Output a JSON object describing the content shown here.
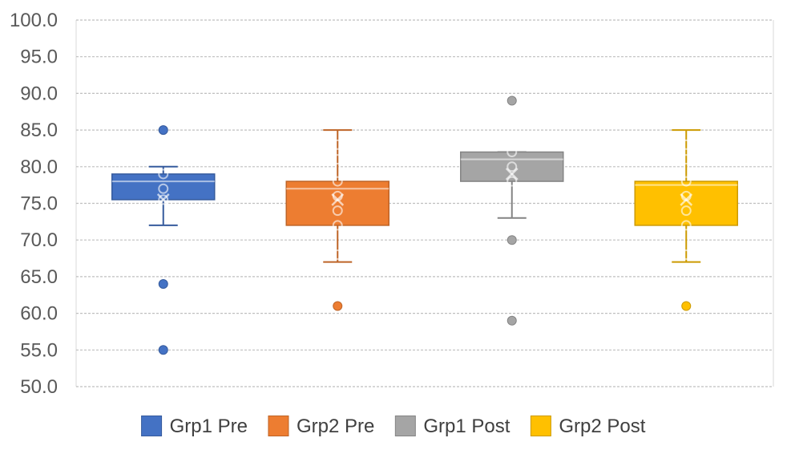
{
  "chart_data": {
    "type": "box",
    "title": "",
    "xlabel": "",
    "ylabel": "",
    "ylim": [
      50,
      100
    ],
    "y_ticks": [
      "50.0",
      "55.0",
      "60.0",
      "65.0",
      "70.0",
      "75.0",
      "80.0",
      "85.0",
      "90.0",
      "95.0",
      "100.0"
    ],
    "grid": true,
    "legend_position": "bottom",
    "series": [
      {
        "name": "Grp1 Pre",
        "color": "#4472C4",
        "whisker_low": 72,
        "q1": 75.5,
        "median": 78,
        "q3": 79,
        "whisker_high": 80,
        "mean": 75.5,
        "points": [
          79,
          77,
          75.5
        ],
        "outliers": [
          85,
          64,
          55
        ]
      },
      {
        "name": "Grp2 Pre",
        "color": "#ED7D31",
        "whisker_low": 67,
        "q1": 72,
        "median": 77,
        "q3": 78,
        "whisker_high": 85,
        "mean": 75.5,
        "points": [
          83,
          81,
          78,
          76,
          74,
          72,
          68
        ],
        "outliers": [
          61
        ]
      },
      {
        "name": "Grp1 Post",
        "color": "#A5A5A5",
        "whisker_low": 73,
        "q1": 78,
        "median": 81,
        "q3": 82,
        "whisker_high": 82,
        "mean": 79,
        "points": [
          82,
          80,
          78
        ],
        "outliers": [
          89,
          70,
          59
        ]
      },
      {
        "name": "Grp2 Post",
        "color": "#FFC000",
        "whisker_low": 67,
        "q1": 72,
        "median": 77.5,
        "q3": 78,
        "whisker_high": 85,
        "mean": 75.5,
        "points": [
          83,
          81,
          78,
          76,
          74,
          72,
          68
        ],
        "outliers": [
          61
        ]
      }
    ]
  }
}
